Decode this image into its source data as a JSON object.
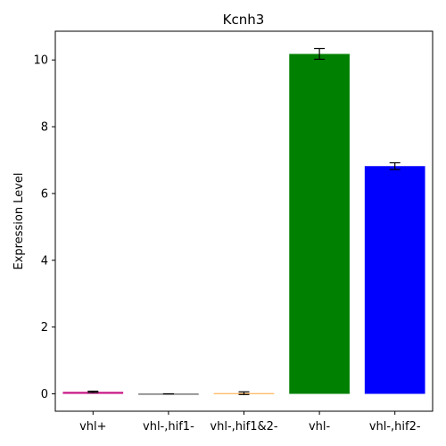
{
  "chart_data": {
    "type": "bar",
    "title": "Kcnh3",
    "xlabel": "",
    "ylabel": "Expression Level",
    "categories": [
      "vhl+",
      "vhl-,hif1-",
      "vhl-,hif1&2-",
      "vhl-",
      "vhl-,hif2-"
    ],
    "values": [
      0.06,
      0.0,
      0.02,
      10.18,
      6.82
    ],
    "errors": [
      0.02,
      0.0,
      0.04,
      0.16,
      0.1
    ],
    "colors": [
      "#c71585",
      "#000000",
      "#ff8c00",
      "#008000",
      "#0000ff"
    ],
    "ylim": [
      -0.52,
      10.86
    ],
    "yticks": [
      0,
      2,
      4,
      6,
      8,
      10
    ],
    "grid": false
  }
}
